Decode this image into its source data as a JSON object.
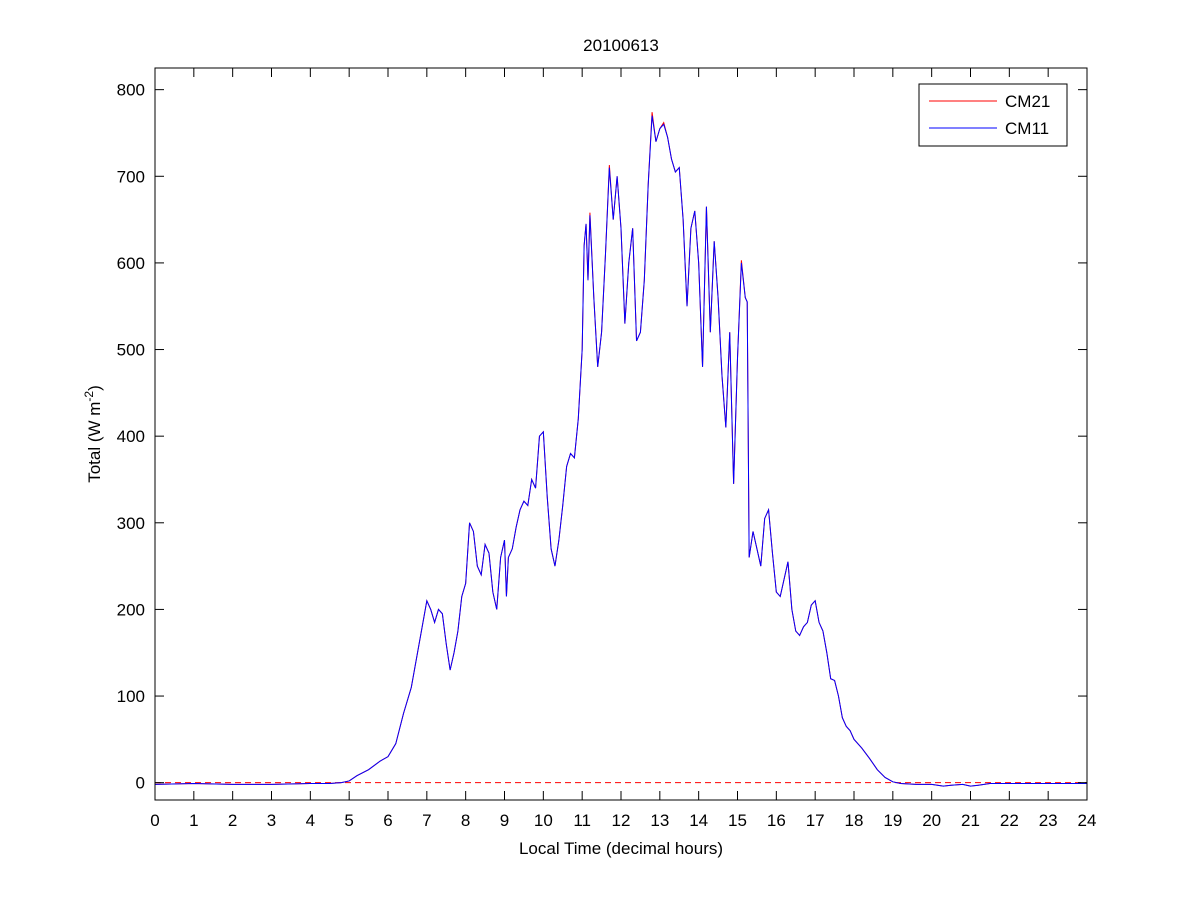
{
  "chart_data": {
    "type": "line",
    "title": "20100613",
    "xlabel": "Local Time (decimal hours)",
    "ylabel": {
      "text": "Total (W m",
      "superscript": "-2",
      "suffix": ")"
    },
    "x": [
      0,
      1,
      2,
      3,
      4,
      4.5,
      4.8,
      5,
      5.2,
      5.5,
      5.8,
      6,
      6.2,
      6.4,
      6.6,
      6.8,
      7,
      7.1,
      7.2,
      7.3,
      7.4,
      7.5,
      7.6,
      7.7,
      7.8,
      7.9,
      8,
      8.1,
      8.2,
      8.3,
      8.4,
      8.5,
      8.6,
      8.7,
      8.8,
      8.9,
      9,
      9.05,
      9.1,
      9.2,
      9.3,
      9.4,
      9.5,
      9.6,
      9.7,
      9.8,
      9.9,
      10,
      10.1,
      10.2,
      10.3,
      10.4,
      10.5,
      10.6,
      10.7,
      10.8,
      10.9,
      11,
      11.05,
      11.1,
      11.15,
      11.2,
      11.3,
      11.4,
      11.5,
      11.6,
      11.7,
      11.8,
      11.9,
      12,
      12.1,
      12.2,
      12.3,
      12.4,
      12.5,
      12.6,
      12.7,
      12.8,
      12.9,
      13,
      13.1,
      13.2,
      13.3,
      13.4,
      13.5,
      13.6,
      13.7,
      13.8,
      13.9,
      14,
      14.1,
      14.2,
      14.3,
      14.4,
      14.5,
      14.6,
      14.7,
      14.8,
      14.9,
      15,
      15.1,
      15.2,
      15.25,
      15.3,
      15.4,
      15.5,
      15.6,
      15.7,
      15.8,
      15.9,
      16,
      16.1,
      16.2,
      16.3,
      16.4,
      16.5,
      16.6,
      16.7,
      16.8,
      16.9,
      17,
      17.1,
      17.2,
      17.3,
      17.4,
      17.5,
      17.6,
      17.7,
      17.8,
      17.9,
      18,
      18.2,
      18.4,
      18.6,
      18.8,
      19,
      19.2,
      19.6,
      20,
      20.3,
      20.5,
      20.8,
      21,
      21.2,
      21.5,
      22,
      23,
      24
    ],
    "series": [
      {
        "name": "CM21",
        "color": "#ff0000",
        "values": [
          -2,
          -1,
          -2,
          -2,
          -1,
          -1,
          0,
          2,
          8,
          15,
          25,
          30,
          45,
          80,
          110,
          160,
          210,
          200,
          185,
          200,
          195,
          160,
          130,
          150,
          175,
          215,
          230,
          300,
          290,
          250,
          240,
          275,
          265,
          220,
          200,
          260,
          280,
          215,
          260,
          270,
          295,
          315,
          325,
          320,
          350,
          340,
          400,
          405,
          330,
          270,
          250,
          280,
          320,
          365,
          380,
          375,
          420,
          500,
          620,
          645,
          580,
          658,
          560,
          480,
          520,
          610,
          713,
          650,
          700,
          640,
          530,
          600,
          640,
          510,
          520,
          580,
          690,
          774,
          740,
          755,
          762,
          745,
          720,
          705,
          710,
          650,
          550,
          640,
          660,
          600,
          480,
          665,
          520,
          625,
          560,
          470,
          410,
          520,
          345,
          490,
          603,
          560,
          555,
          260,
          290,
          270,
          250,
          305,
          315,
          265,
          220,
          215,
          235,
          255,
          200,
          175,
          170,
          180,
          185,
          205,
          210,
          185,
          175,
          150,
          120,
          118,
          100,
          75,
          65,
          60,
          50,
          40,
          28,
          15,
          6,
          1,
          -1,
          -2,
          -2,
          -4,
          -3,
          -2,
          -4,
          -3,
          -1,
          -1,
          -1,
          -1
        ]
      },
      {
        "name": "CM11",
        "color": "#0000ff",
        "values": [
          -2,
          -1,
          -2,
          -2,
          -1,
          -1,
          0,
          2,
          8,
          15,
          25,
          30,
          45,
          80,
          110,
          160,
          210,
          200,
          185,
          200,
          195,
          160,
          130,
          150,
          175,
          215,
          230,
          300,
          290,
          250,
          240,
          275,
          265,
          220,
          200,
          260,
          280,
          215,
          260,
          270,
          295,
          315,
          325,
          320,
          350,
          340,
          400,
          405,
          330,
          270,
          250,
          280,
          320,
          365,
          380,
          375,
          420,
          500,
          620,
          645,
          580,
          655,
          560,
          480,
          520,
          610,
          710,
          650,
          700,
          640,
          530,
          600,
          640,
          510,
          520,
          580,
          690,
          770,
          740,
          755,
          760,
          745,
          720,
          705,
          710,
          650,
          550,
          640,
          660,
          600,
          480,
          665,
          520,
          625,
          560,
          470,
          410,
          520,
          345,
          490,
          600,
          560,
          555,
          260,
          290,
          270,
          250,
          305,
          315,
          265,
          220,
          215,
          235,
          255,
          200,
          175,
          170,
          180,
          185,
          205,
          210,
          185,
          175,
          150,
          120,
          118,
          100,
          75,
          65,
          60,
          50,
          40,
          28,
          15,
          6,
          1,
          -1,
          -2,
          -2,
          -4,
          -3,
          -2,
          -4,
          -3,
          -1,
          -1,
          -1,
          -1
        ]
      }
    ],
    "hline": {
      "value": 0,
      "color": "#ff0000"
    },
    "xlim": [
      0,
      24
    ],
    "xticks": [
      0,
      1,
      2,
      3,
      4,
      5,
      6,
      7,
      8,
      9,
      10,
      11,
      12,
      13,
      14,
      15,
      16,
      17,
      18,
      19,
      20,
      21,
      22,
      23,
      24
    ],
    "ylim": [
      -20,
      825
    ],
    "yticks": [
      0,
      100,
      200,
      300,
      400,
      500,
      600,
      700,
      800
    ],
    "legend": "northeast"
  }
}
